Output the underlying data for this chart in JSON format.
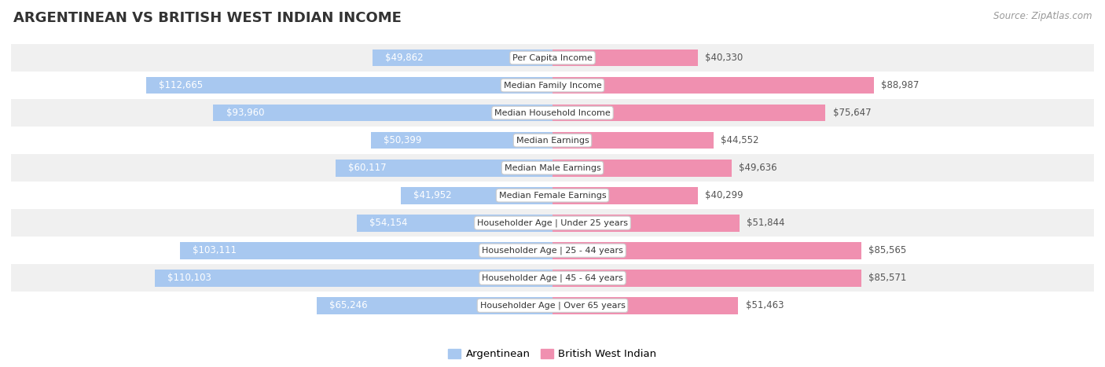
{
  "title": "ARGENTINEAN VS BRITISH WEST INDIAN INCOME",
  "source": "Source: ZipAtlas.com",
  "categories": [
    "Per Capita Income",
    "Median Family Income",
    "Median Household Income",
    "Median Earnings",
    "Median Male Earnings",
    "Median Female Earnings",
    "Householder Age | Under 25 years",
    "Householder Age | 25 - 44 years",
    "Householder Age | 45 - 64 years",
    "Householder Age | Over 65 years"
  ],
  "argentinean": [
    49862,
    112665,
    93960,
    50399,
    60117,
    41952,
    54154,
    103111,
    110103,
    65246
  ],
  "british_west_indian": [
    40330,
    88987,
    75647,
    44552,
    49636,
    40299,
    51844,
    85565,
    85571,
    51463
  ],
  "max_value": 150000,
  "bar_color_arg": "#a8c8f0",
  "bar_color_bwi": "#f090b0",
  "label_color_inside": "#ffffff",
  "label_color_outside": "#555555",
  "row_bg_colors": [
    "#f0f0f0",
    "#ffffff"
  ],
  "bar_height": 0.62,
  "legend_label_arg": "Argentinean",
  "legend_label_bwi": "British West Indian",
  "inside_threshold": 35000,
  "label_fontsize": 8.5,
  "cat_fontsize": 8.0,
  "title_fontsize": 13,
  "source_fontsize": 8.5
}
